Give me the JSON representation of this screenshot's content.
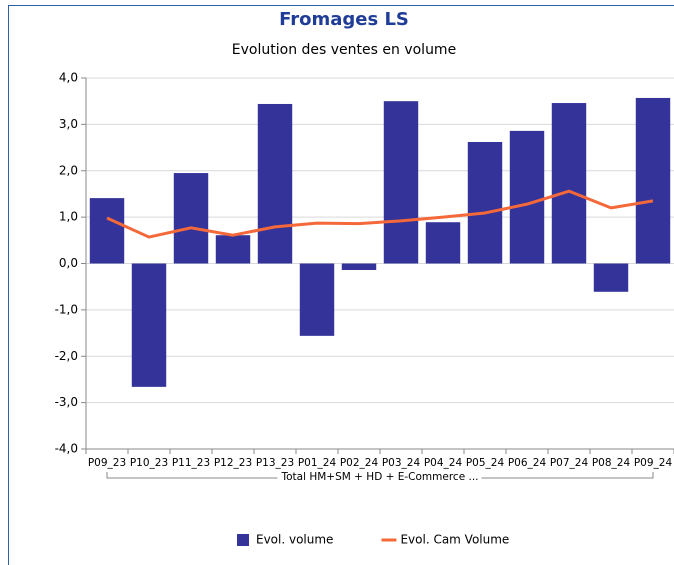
{
  "chart_data": {
    "type": "bar",
    "title": "Fromages LS",
    "subtitle": "Evolution des ventes en volume",
    "categories": [
      "P09_23",
      "P10_23",
      "P11_23",
      "P12_23",
      "P13_23",
      "P01_24",
      "P02_24",
      "P03_24",
      "P04_24",
      "P05_24",
      "P06_24",
      "P07_24",
      "P08_24",
      "P09_24"
    ],
    "group_label": "Total HM+SM + HD + E-Commerce ...",
    "series": [
      {
        "name": "Evol. volume",
        "type": "bar",
        "color": "#333399",
        "values": [
          1.41,
          -2.66,
          1.95,
          0.61,
          3.44,
          -1.56,
          -0.14,
          3.5,
          0.89,
          2.62,
          2.86,
          3.46,
          -0.61,
          3.57
        ]
      },
      {
        "name": "Evol. Cam Volume",
        "type": "line",
        "color": "#f4683a",
        "values": [
          0.98,
          0.57,
          0.77,
          0.61,
          0.79,
          0.87,
          0.86,
          0.92,
          1.0,
          1.09,
          1.28,
          1.56,
          1.2,
          1.35
        ]
      }
    ],
    "ylim": [
      -4,
      4
    ],
    "yticks": [
      {
        "value": -4,
        "label": "-4,0"
      },
      {
        "value": -3,
        "label": "-3,0"
      },
      {
        "value": -2,
        "label": "-2,0"
      },
      {
        "value": -1,
        "label": "-1,0"
      },
      {
        "value": 0,
        "label": "0,0"
      },
      {
        "value": 1,
        "label": "1,0"
      },
      {
        "value": 2,
        "label": "2,0"
      },
      {
        "value": 3,
        "label": "3,0"
      },
      {
        "value": 4,
        "label": "4,0"
      }
    ],
    "grid": true,
    "legend": "bottom"
  }
}
